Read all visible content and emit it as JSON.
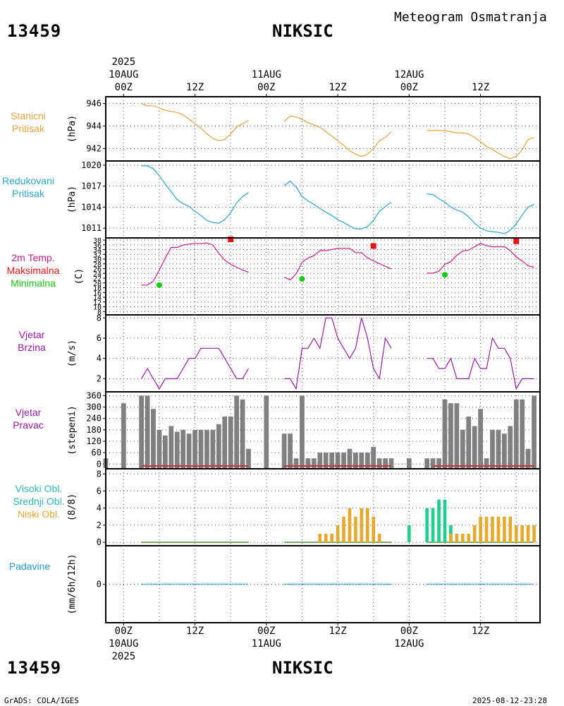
{
  "header": {
    "station_id": "13459",
    "station_name": "NIKSIC",
    "subtitle": "Meteogram Osmatranja"
  },
  "footer": {
    "credit": "GrADS: COLA/IGES",
    "timestamp": "2025-08-12-23:28"
  },
  "time_axis": {
    "year": "2025",
    "ticks": [
      {
        "t": 0,
        "label": "00Z",
        "date": "10AUG"
      },
      {
        "t": 12,
        "label": "12Z",
        "date": ""
      },
      {
        "t": 24,
        "label": "00Z",
        "date": "11AUG"
      },
      {
        "t": 36,
        "label": "12Z",
        "date": ""
      },
      {
        "t": 48,
        "label": "00Z",
        "date": "12AUG"
      },
      {
        "t": 60,
        "label": "12Z",
        "date": ""
      }
    ],
    "range_hours": [
      -3,
      70
    ]
  },
  "colors": {
    "pressure": "#e8a23a",
    "reduced": "#2aa8d0",
    "temp": "#cc1c8c",
    "max": "#ee1111",
    "min": "#11cc11",
    "wind": "#9a1aa8",
    "bars": "#808080",
    "high_cloud": "#2abbb6",
    "mid_cloud": "#1fcf8f",
    "low_cloud": "#e6a92b",
    "precip": "#2a9ad0"
  },
  "chart_data": [
    {
      "type": "line",
      "name": "station-pressure",
      "label_lines": [
        "Stanicni",
        "Pritisak"
      ],
      "ylabel": "(hPa)",
      "yticks": [
        942,
        944,
        946
      ],
      "ylim": [
        940.9,
        946.6
      ],
      "series": [
        {
          "x": [
            3,
            4,
            5,
            6,
            7,
            8,
            9,
            10,
            11,
            12,
            13,
            14,
            15,
            16,
            17,
            18,
            19,
            20,
            21
          ],
          "values": [
            946.0,
            945.8,
            945.8,
            945.6,
            945.4,
            945.3,
            945.2,
            945.0,
            944.6,
            944.2,
            943.8,
            943.3,
            942.9,
            942.7,
            942.8,
            943.3,
            943.9,
            944.2,
            944.5
          ]
        },
        {
          "x": [
            27,
            28,
            29,
            30,
            31,
            32,
            33,
            34,
            35,
            36,
            37,
            38,
            39,
            40,
            41,
            42,
            43,
            44,
            45
          ],
          "values": [
            944.4,
            944.9,
            944.8,
            944.6,
            944.3,
            944.1,
            943.9,
            943.5,
            943.1,
            942.7,
            942.3,
            941.8,
            941.5,
            941.3,
            941.5,
            942.0,
            942.7,
            943.0,
            943.5
          ]
        },
        {
          "x": [
            51,
            52,
            53,
            54,
            55,
            56,
            57,
            58,
            59,
            60,
            61,
            62,
            63,
            64,
            65,
            66,
            67,
            68,
            69
          ],
          "values": [
            943.6,
            943.6,
            943.6,
            943.6,
            943.5,
            943.4,
            943.4,
            943.3,
            943.0,
            942.6,
            942.2,
            941.9,
            941.6,
            941.3,
            941.1,
            941.3,
            941.9,
            942.8,
            943.0
          ]
        }
      ]
    },
    {
      "type": "line",
      "name": "reduced-pressure",
      "label_lines": [
        "Redukovani",
        "Pritisak"
      ],
      "ylabel": "(hPa)",
      "yticks": [
        1011,
        1014,
        1017,
        1020
      ],
      "ylim": [
        1009.6,
        1020.6
      ],
      "series": [
        {
          "x": [
            3,
            4,
            5,
            6,
            7,
            8,
            9,
            10,
            11,
            12,
            13,
            14,
            15,
            16,
            17,
            18,
            19,
            20,
            21
          ],
          "values": [
            1019.9,
            1019.9,
            1019.5,
            1018.5,
            1017.3,
            1016.2,
            1015.1,
            1014.5,
            1014.1,
            1013.4,
            1012.8,
            1012.1,
            1011.8,
            1011.7,
            1012.2,
            1013.2,
            1014.6,
            1015.5,
            1016.1
          ]
        },
        {
          "x": [
            27,
            28,
            29,
            30,
            31,
            32,
            33,
            34,
            35,
            36,
            37,
            38,
            39,
            40,
            41,
            42,
            43,
            44,
            45
          ],
          "values": [
            1017.1,
            1017.7,
            1016.9,
            1015.5,
            1014.9,
            1014.4,
            1013.8,
            1013.3,
            1012.8,
            1012.2,
            1011.8,
            1011.3,
            1010.9,
            1010.9,
            1011.2,
            1012.1,
            1013.4,
            1014.1,
            1014.7
          ]
        },
        {
          "x": [
            51,
            52,
            53,
            54,
            55,
            56,
            57,
            58,
            59,
            60,
            61,
            62,
            63,
            64,
            65,
            66,
            67,
            68,
            69
          ],
          "values": [
            1015.9,
            1015.8,
            1015.2,
            1014.7,
            1014.0,
            1013.6,
            1013.3,
            1012.6,
            1011.7,
            1011.0,
            1010.6,
            1010.5,
            1010.4,
            1010.2,
            1010.7,
            1011.6,
            1012.9,
            1014.0,
            1014.4
          ]
        }
      ]
    },
    {
      "type": "line",
      "name": "temperature",
      "label_lines": [
        "2m Temp.",
        "Maksimalna",
        "Minimalna"
      ],
      "label_colors": [
        "temp",
        "max",
        "min"
      ],
      "ylabel": "(C)",
      "yticks": [
        8,
        10,
        12,
        14,
        16,
        18,
        20,
        22,
        24,
        26,
        28,
        30,
        32,
        34,
        36,
        38
      ],
      "ylim": [
        6.6,
        38.9
      ],
      "series": [
        {
          "x": [
            3,
            4,
            5,
            6,
            7,
            8,
            9,
            10,
            11,
            12,
            13,
            14,
            15,
            16,
            17,
            18,
            19,
            20,
            21
          ],
          "values": [
            19.1,
            19.1,
            20.8,
            25.4,
            30.4,
            34.9,
            34.9,
            35.9,
            36.3,
            36.6,
            36.6,
            36.8,
            35.9,
            32.5,
            29.6,
            27.8,
            26.6,
            25.4,
            24.5
          ]
        },
        {
          "x": [
            27,
            28,
            29,
            30,
            31,
            32,
            33,
            34,
            35,
            36,
            37,
            38,
            39,
            40,
            41,
            42,
            43,
            44,
            45
          ],
          "values": [
            22.4,
            21.3,
            23.8,
            28.7,
            30.5,
            31.4,
            33.6,
            33.6,
            34.0,
            34.5,
            34.5,
            34.5,
            32.7,
            32.7,
            30.5,
            29.3,
            28.1,
            27.0,
            25.9
          ]
        },
        {
          "x": [
            51,
            52,
            53,
            54,
            55,
            56,
            57,
            58,
            59,
            60,
            61,
            62,
            63,
            64,
            65,
            66,
            67,
            68,
            69
          ],
          "values": [
            24.1,
            24.1,
            24.9,
            27.8,
            28.9,
            31.6,
            33.4,
            33.8,
            35.2,
            36.6,
            35.6,
            35.2,
            35.2,
            35.2,
            33.6,
            30.9,
            29.2,
            27.2,
            26.6
          ]
        }
      ],
      "max_points": {
        "x": [
          18,
          42,
          66
        ],
        "values": [
          38.3,
          35.5,
          37.5
        ]
      },
      "min_points": {
        "x": [
          6,
          30,
          54
        ],
        "values": [
          19.1,
          21.7,
          23.4
        ]
      }
    },
    {
      "type": "line",
      "name": "wind-speed",
      "label_lines": [
        "Vjetar",
        "Brzina"
      ],
      "ylabel": "(m/s)",
      "yticks": [
        2,
        4,
        6,
        8
      ],
      "ylim": [
        0.7,
        8.3
      ],
      "series": [
        {
          "x": [
            3,
            4,
            5,
            6,
            7,
            8,
            9,
            10,
            11,
            12,
            13,
            14,
            15,
            16,
            17,
            18,
            19,
            20,
            21
          ],
          "values": [
            2,
            3,
            2,
            1,
            2,
            2,
            2,
            3,
            4,
            4,
            5,
            5,
            5,
            5,
            4,
            3,
            2,
            2,
            3
          ]
        },
        {
          "x": [
            27,
            28,
            29,
            30,
            31,
            32,
            33,
            34,
            35,
            36,
            37,
            38,
            39,
            40,
            41,
            42,
            43,
            44,
            45
          ],
          "values": [
            2,
            2,
            1,
            5,
            5,
            6,
            5,
            8,
            8,
            6,
            5,
            4,
            5,
            8,
            6,
            3,
            2,
            6,
            5
          ]
        },
        {
          "x": [
            51,
            52,
            53,
            54,
            55,
            56,
            57,
            58,
            59,
            60,
            61,
            62,
            63,
            64,
            65,
            66,
            67,
            68,
            69
          ],
          "values": [
            4,
            4,
            3,
            3,
            4,
            2,
            2,
            2,
            4,
            3,
            3,
            6,
            5,
            5,
            4,
            1,
            2,
            2,
            2
          ]
        }
      ]
    },
    {
      "type": "bar",
      "name": "wind-direction",
      "label_lines": [
        "Vjetar",
        "Pravac"
      ],
      "ylabel": "(stepeni)",
      "yticks": [
        0,
        60,
        120,
        180,
        240,
        300,
        360
      ],
      "ylim": [
        -25,
        380
      ],
      "x": [
        -3,
        0,
        3,
        4,
        5,
        6,
        7,
        8,
        9,
        10,
        11,
        12,
        13,
        14,
        15,
        16,
        17,
        18,
        19,
        20,
        21,
        24,
        27,
        28,
        29,
        30,
        31,
        32,
        33,
        34,
        35,
        36,
        37,
        38,
        39,
        40,
        41,
        42,
        43,
        44,
        45,
        48,
        51,
        52,
        53,
        54,
        55,
        56,
        57,
        58,
        59,
        60,
        61,
        62,
        63,
        64,
        65,
        66,
        67,
        68,
        69
      ],
      "values": [
        30,
        320,
        360,
        360,
        290,
        180,
        150,
        200,
        170,
        180,
        160,
        180,
        180,
        180,
        180,
        210,
        250,
        250,
        360,
        340,
        80,
        360,
        160,
        160,
        30,
        360,
        30,
        30,
        60,
        60,
        60,
        60,
        60,
        80,
        60,
        60,
        60,
        90,
        30,
        30,
        30,
        30,
        30,
        30,
        30,
        340,
        320,
        320,
        180,
        250,
        200,
        290,
        30,
        180,
        180,
        160,
        200,
        340,
        340,
        80,
        360
      ],
      "calm_line": [
        [
          3,
          21
        ],
        [
          27,
          45
        ],
        [
          52,
          69
        ]
      ]
    },
    {
      "type": "bar",
      "name": "cloud-cover",
      "label_lines": [
        "Visoki Obl.",
        "Srednji Obl.",
        "Niski Obl."
      ],
      "label_colors": [
        "high_cloud",
        "mid_cloud",
        "low_cloud"
      ],
      "ylabel": "(8/8)",
      "yticks": [
        0,
        2,
        4,
        6,
        8
      ],
      "ylim": [
        -0.4,
        8.6
      ],
      "series": [
        {
          "name": "Srednji Obl.",
          "x": [
            48,
            51,
            52,
            53,
            54,
            55
          ],
          "values": [
            2,
            4,
            4,
            5,
            5,
            2
          ]
        },
        {
          "name": "Niski Obl.",
          "x": [
            33,
            34,
            35,
            36,
            37,
            38,
            39,
            40,
            41,
            42,
            43,
            55,
            56,
            57,
            58,
            59,
            60,
            61,
            62,
            63,
            64,
            65,
            66,
            67,
            68,
            69
          ],
          "values": [
            1,
            1,
            1,
            2,
            3,
            4,
            3,
            4,
            4,
            3,
            1,
            1,
            1,
            1,
            1,
            2,
            3,
            3,
            3,
            3,
            3,
            3,
            2,
            2,
            2,
            2
          ]
        }
      ],
      "zero_line": [
        [
          3,
          21
        ],
        [
          27,
          45
        ],
        [
          51,
          69
        ]
      ]
    },
    {
      "type": "line",
      "name": "precipitation",
      "label_lines": [
        "Padavine"
      ],
      "label_colors": [
        "precip"
      ],
      "ylabel": "(mm/6h/12h)",
      "yticks": [
        0
      ],
      "ylim": [
        -1,
        1
      ],
      "series": [
        {
          "x": [
            3,
            21
          ],
          "values": [
            0,
            0
          ]
        },
        {
          "x": [
            27,
            45
          ],
          "values": [
            0,
            0
          ]
        },
        {
          "x": [
            51,
            69
          ],
          "values": [
            0,
            0
          ]
        }
      ]
    }
  ]
}
